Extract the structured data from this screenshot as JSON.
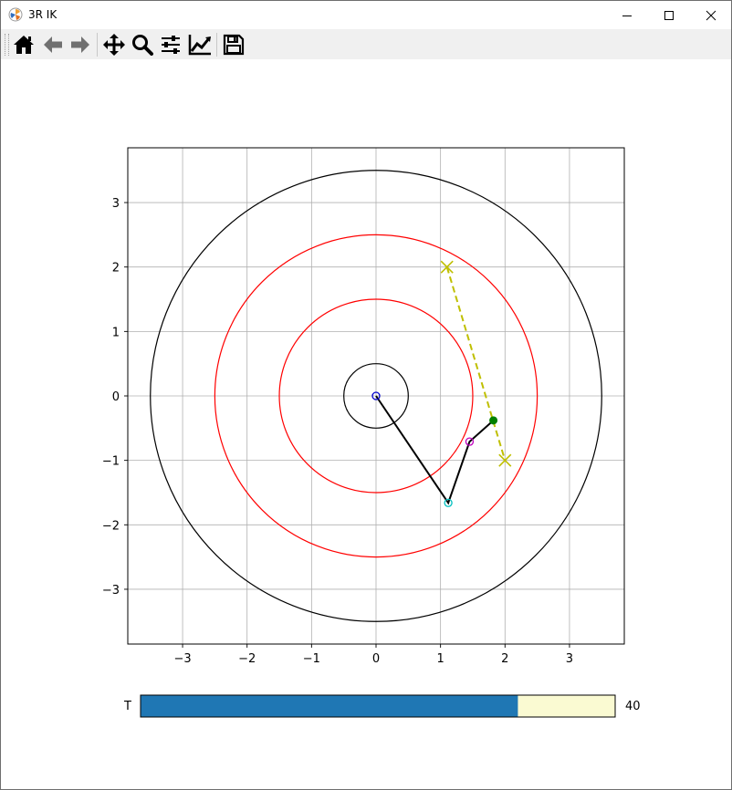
{
  "window": {
    "title": "3R IK"
  },
  "toolbar": {
    "buttons": [
      {
        "name": "home-button",
        "icon": "home-icon"
      },
      {
        "name": "back-button",
        "icon": "arrow-left-icon"
      },
      {
        "name": "forward-button",
        "icon": "arrow-right-icon"
      },
      {
        "name": "pan-button",
        "icon": "move-icon"
      },
      {
        "name": "zoom-button",
        "icon": "magnifier-icon"
      },
      {
        "name": "configure-subplots-button",
        "icon": "sliders-icon"
      },
      {
        "name": "edit-axis-button",
        "icon": "line-chart-icon"
      },
      {
        "name": "save-button",
        "icon": "floppy-disk-icon"
      }
    ]
  },
  "chart_data": {
    "type": "scatter",
    "xlim": [
      -3.85,
      3.85
    ],
    "ylim": [
      -3.85,
      3.85
    ],
    "x_ticks": [
      -3,
      -2,
      -1,
      0,
      1,
      2,
      3
    ],
    "y_ticks": [
      -3,
      -2,
      -1,
      0,
      1,
      2,
      3
    ],
    "x_tick_labels": [
      "−3",
      "−2",
      "−1",
      "0",
      "1",
      "2",
      "3"
    ],
    "y_tick_labels": [
      "−3",
      "−2",
      "−1",
      "0",
      "1",
      "2",
      "3"
    ],
    "grid": true,
    "circles": [
      {
        "r": 0.5,
        "color": "#000000"
      },
      {
        "r": 1.5,
        "color": "#ff0000"
      },
      {
        "r": 2.5,
        "color": "#ff0000"
      },
      {
        "r": 3.5,
        "color": "#000000"
      }
    ],
    "path": {
      "x": [
        1.1,
        2.0
      ],
      "y": [
        2.0,
        -1.0
      ],
      "color": "#bfbf00",
      "style": "dashed"
    },
    "path_endpoints": [
      {
        "x": 1.1,
        "y": 2.0
      },
      {
        "x": 2.0,
        "y": -1.0
      }
    ],
    "arm": {
      "x": [
        0,
        1.12,
        1.45,
        1.82
      ],
      "y": [
        0,
        -1.66,
        -0.71,
        -0.38
      ],
      "color": "#000000"
    },
    "joints": [
      {
        "x": 0,
        "y": 0,
        "color": "#0000cc"
      },
      {
        "x": 1.12,
        "y": -1.66,
        "color": "#00bfbf"
      },
      {
        "x": 1.45,
        "y": -0.71,
        "color": "#bf00bf"
      }
    ],
    "end_effector": {
      "x": 1.82,
      "y": -0.38,
      "color": "#008000"
    }
  },
  "slider": {
    "label": "T",
    "value_text": "40",
    "fraction": 0.795,
    "fill_color": "#1f77b4",
    "track_color": "#fafad2"
  }
}
